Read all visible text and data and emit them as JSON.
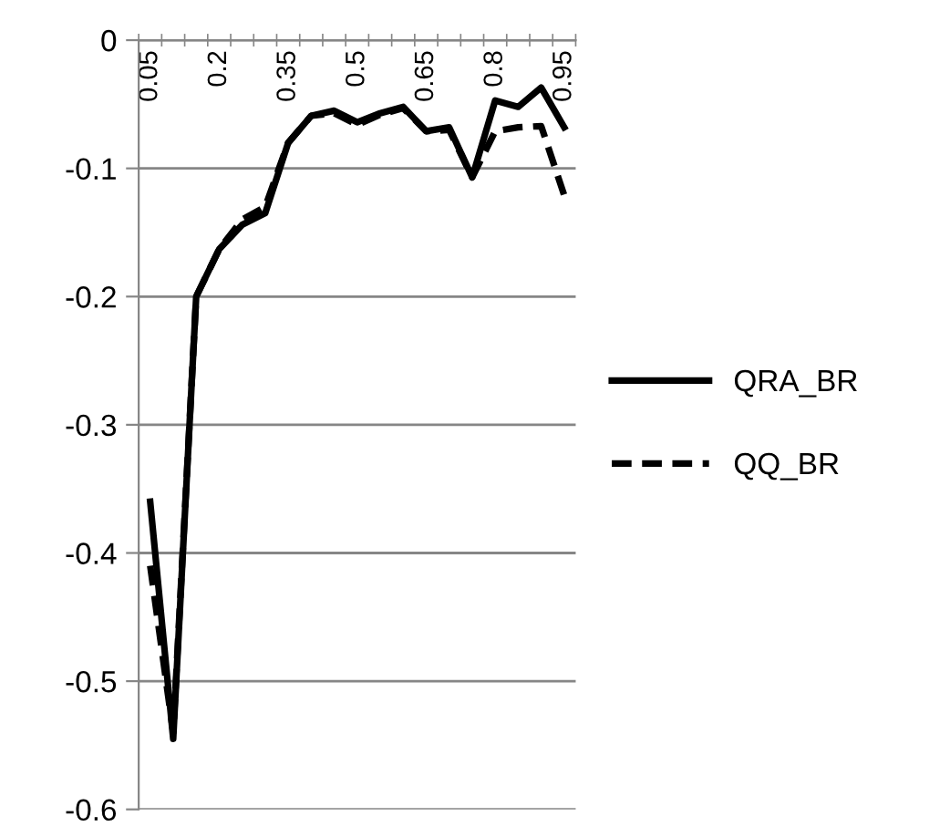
{
  "chart_data": {
    "type": "line",
    "categories": [
      "0.05",
      null,
      null,
      "0.2",
      null,
      null,
      "0.35",
      null,
      null,
      "0.5",
      null,
      null,
      "0.65",
      null,
      null,
      "0.8",
      null,
      null,
      "0.95"
    ],
    "series": [
      {
        "name": "QRA_BR",
        "color": "#000000",
        "line_style": "solid",
        "values": [
          -0.36,
          -0.545,
          -0.2,
          -0.163,
          -0.144,
          -0.135,
          -0.08,
          -0.059,
          -0.055,
          -0.064,
          -0.057,
          -0.052,
          -0.071,
          -0.068,
          -0.107,
          -0.047,
          -0.052,
          -0.037,
          -0.068
        ]
      },
      {
        "name": "QQ_BR",
        "color": "#000000",
        "line_style": "dashed",
        "values": [
          -0.41,
          -0.54,
          -0.2,
          -0.163,
          -0.14,
          -0.13,
          -0.08,
          -0.059,
          -0.057,
          -0.066,
          -0.058,
          -0.053,
          -0.071,
          -0.07,
          -0.107,
          -0.071,
          -0.068,
          -0.067,
          -0.121
        ]
      }
    ],
    "ylim": [
      -0.6,
      0
    ],
    "yticks": [
      -0.6,
      -0.5,
      -0.4,
      -0.3,
      -0.2,
      -0.1,
      0
    ],
    "grid": "y",
    "legend": "right",
    "marker": "none"
  }
}
